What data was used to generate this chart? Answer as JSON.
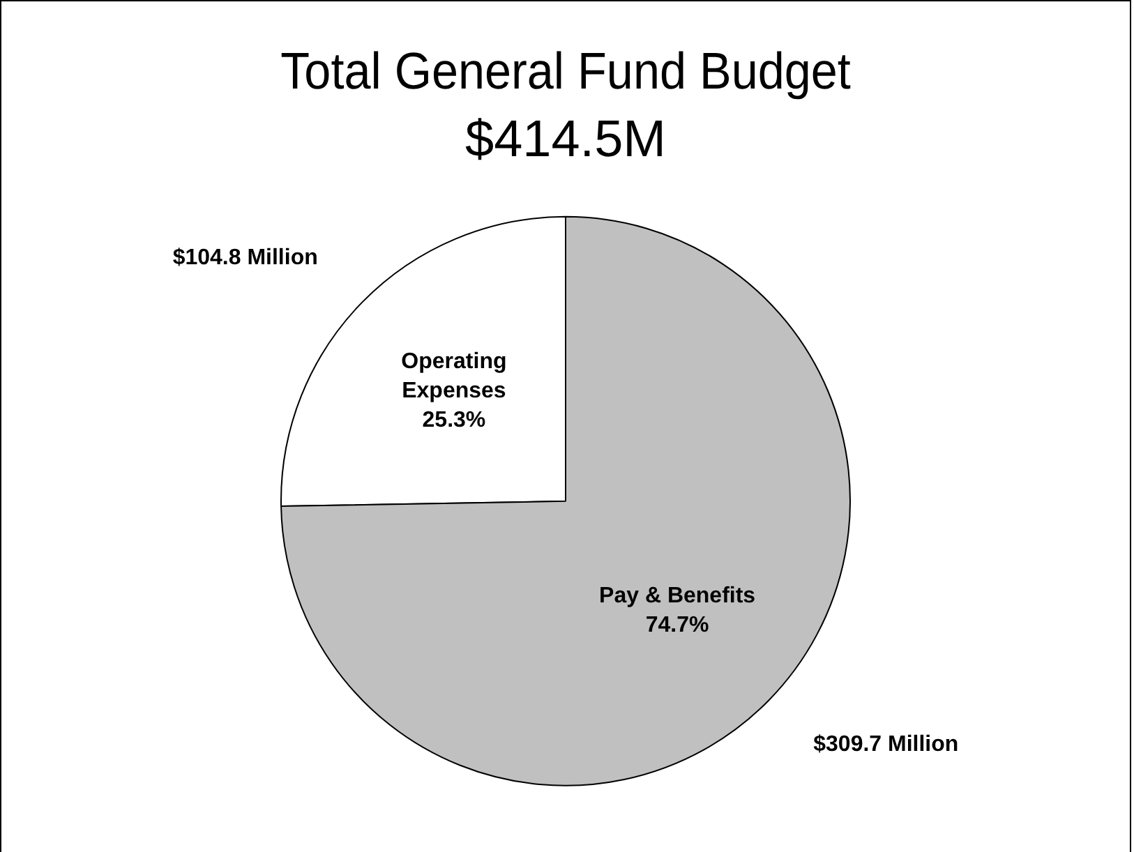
{
  "chart_data": {
    "type": "pie",
    "title": "Total General Fund Budget",
    "subtitle": "$414.5M",
    "categories": [
      "Operating Expenses",
      "Pay & Benefits"
    ],
    "values": [
      104.8,
      309.7
    ],
    "colors": [
      "#ffffff",
      "#c0c0c0"
    ],
    "value_labels": [
      "$104.8 Million",
      "$309.7 Million"
    ],
    "annotations": [
      {
        "text": "25.3%",
        "x": "Operating Expenses"
      },
      {
        "text": "74.7%",
        "x": "Pay & Benefits"
      }
    ],
    "legend": false
  }
}
